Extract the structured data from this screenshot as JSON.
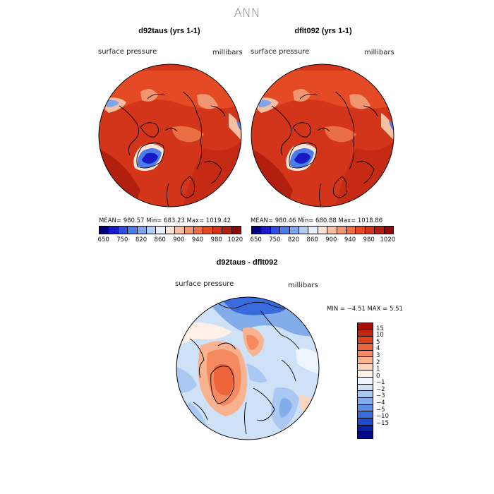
{
  "page_title": "ANN",
  "top_colorbar": {
    "colors": [
      "#00007e",
      "#1919c8",
      "#2f4fe0",
      "#4b7be8",
      "#7ea5ee",
      "#b4cdf6",
      "#e6eef9",
      "#fae3d4",
      "#f6bfa2",
      "#f09771",
      "#ea6f44",
      "#e44b24",
      "#d2351a",
      "#b31f0f",
      "#8c0a05"
    ],
    "tick_labels": [
      "650",
      "750",
      "820",
      "860",
      "900",
      "940",
      "980",
      "1020"
    ]
  },
  "diff_colorbar": {
    "colors_top_to_bottom": [
      "#a50f06",
      "#c42410",
      "#e0401f",
      "#ee643b",
      "#f58a60",
      "#f8b28e",
      "#fbd4bd",
      "#fef0e7",
      "#eef4fc",
      "#cfe1f7",
      "#aac8f1",
      "#83aceb",
      "#5b8ee6",
      "#3a6bdc",
      "#1f48d0",
      "#0c1f9e",
      "#050888"
    ],
    "tick_labels": [
      "15",
      "10",
      "5",
      "4",
      "3",
      "2",
      "1",
      "0",
      "−1",
      "−2",
      "−3",
      "−4",
      "−5",
      "−10",
      "−15"
    ]
  },
  "chart_data": [
    {
      "type": "heatmap",
      "projection": "north polar stereographic",
      "title": "d92taus (yrs 1-1)",
      "left_label": "surface pressure",
      "right_label": "millibars",
      "stats_text": "MEAN= 980.57   Min= 683.23   Max= 1019.42",
      "mean": 980.57,
      "min": 683.23,
      "max": 1019.42,
      "levels": [
        650,
        700,
        750,
        800,
        820,
        840,
        860,
        880,
        900,
        920,
        940,
        960,
        980,
        1000,
        1020
      ]
    },
    {
      "type": "heatmap",
      "projection": "north polar stereographic",
      "title": "dflt092 (yrs 1-1)",
      "left_label": "surface pressure",
      "right_label": "millibars",
      "stats_text": "MEAN= 980.46   Min= 680.88   Max= 1018.86",
      "mean": 980.46,
      "min": 680.88,
      "max": 1018.86,
      "levels": [
        650,
        700,
        750,
        800,
        820,
        840,
        860,
        880,
        900,
        920,
        940,
        960,
        980,
        1000,
        1020
      ]
    },
    {
      "type": "heatmap",
      "projection": "north polar stereographic",
      "title": "d92taus - dflt092",
      "left_label": "surface pressure",
      "right_label": "millibars",
      "stats_text": "MIN =   −4.51  MAX =    5.51",
      "min": -4.51,
      "max": 5.51,
      "levels": [
        -15,
        -10,
        -5,
        -4,
        -3,
        -2,
        -1,
        0,
        1,
        2,
        3,
        4,
        5,
        10,
        15
      ]
    }
  ]
}
